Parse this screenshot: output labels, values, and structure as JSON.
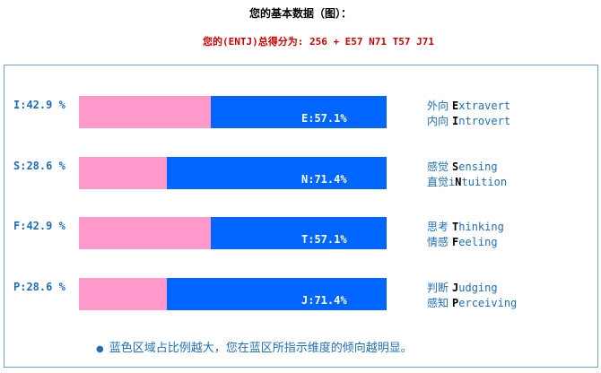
{
  "header": {
    "title": "您的基本数据（图）：",
    "score_line": "您的(ENTJ)总得分为: 256 + E57 N71 T57 J71"
  },
  "colors": {
    "pink": "#ff99cc",
    "blue": "#0066ff",
    "text_blue": "#1f6fb8",
    "score_red": "#cc0000",
    "panel_border": "#6aa7d6"
  },
  "rows": [
    {
      "left_label": "I:42.9 %",
      "bar_label": "E:57.1%",
      "pink_fraction": 0.429,
      "dim1_cn": "外向",
      "dim1_letter": "E",
      "dim1_rest": "xtravert",
      "dim2_cn": "内向",
      "dim2_letter": "I",
      "dim2_rest": "ntrovert"
    },
    {
      "left_label": "S:28.6 %",
      "bar_label": "N:71.4%",
      "pink_fraction": 0.286,
      "dim1_cn": "感觉",
      "dim1_letter": "S",
      "dim1_rest": "ensing",
      "dim2_cn": "直觉",
      "dim2_pre": "i",
      "dim2_letter": "N",
      "dim2_rest": "tuition"
    },
    {
      "left_label": "F:42.9 %",
      "bar_label": "T:57.1%",
      "pink_fraction": 0.429,
      "dim1_cn": "思考",
      "dim1_letter": "T",
      "dim1_rest": "hinking",
      "dim2_cn": "情感",
      "dim2_letter": "F",
      "dim2_rest": "eeling"
    },
    {
      "left_label": "P:28.6 %",
      "bar_label": "J:71.4%",
      "pink_fraction": 0.286,
      "dim1_cn": "判断",
      "dim1_letter": "J",
      "dim1_rest": "udging",
      "dim2_cn": "感知",
      "dim2_letter": "P",
      "dim2_rest": "erceiving"
    }
  ],
  "note": "蓝色区域占比例越大，您在蓝区所指示维度的倾向越明显。"
}
